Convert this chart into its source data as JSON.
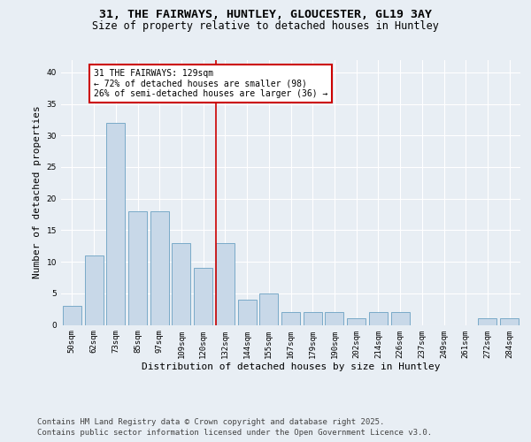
{
  "title_line1": "31, THE FAIRWAYS, HUNTLEY, GLOUCESTER, GL19 3AY",
  "title_line2": "Size of property relative to detached houses in Huntley",
  "xlabel": "Distribution of detached houses by size in Huntley",
  "ylabel": "Number of detached properties",
  "categories": [
    "50sqm",
    "62sqm",
    "73sqm",
    "85sqm",
    "97sqm",
    "109sqm",
    "120sqm",
    "132sqm",
    "144sqm",
    "155sqm",
    "167sqm",
    "179sqm",
    "190sqm",
    "202sqm",
    "214sqm",
    "226sqm",
    "237sqm",
    "249sqm",
    "261sqm",
    "272sqm",
    "284sqm"
  ],
  "values": [
    3,
    11,
    32,
    18,
    18,
    13,
    9,
    13,
    4,
    5,
    2,
    2,
    2,
    1,
    2,
    2,
    0,
    0,
    0,
    1,
    1
  ],
  "bar_color": "#c8d8e8",
  "bar_edge_color": "#7aaac8",
  "property_line_idx": 7,
  "property_line_label": "31 THE FAIRWAYS: 129sqm",
  "annotation_line2": "← 72% of detached houses are smaller (98)",
  "annotation_line3": "26% of semi-detached houses are larger (36) →",
  "annotation_box_color": "#ffffff",
  "annotation_box_edge_color": "#cc0000",
  "vline_color": "#cc0000",
  "ylim": [
    0,
    42
  ],
  "yticks": [
    0,
    5,
    10,
    15,
    20,
    25,
    30,
    35,
    40
  ],
  "background_color": "#e8eef4",
  "title_fontsize": 9.5,
  "subtitle_fontsize": 8.5,
  "axis_label_fontsize": 8,
  "tick_fontsize": 6.5,
  "annotation_fontsize": 7,
  "footer_fontsize": 6.5
}
